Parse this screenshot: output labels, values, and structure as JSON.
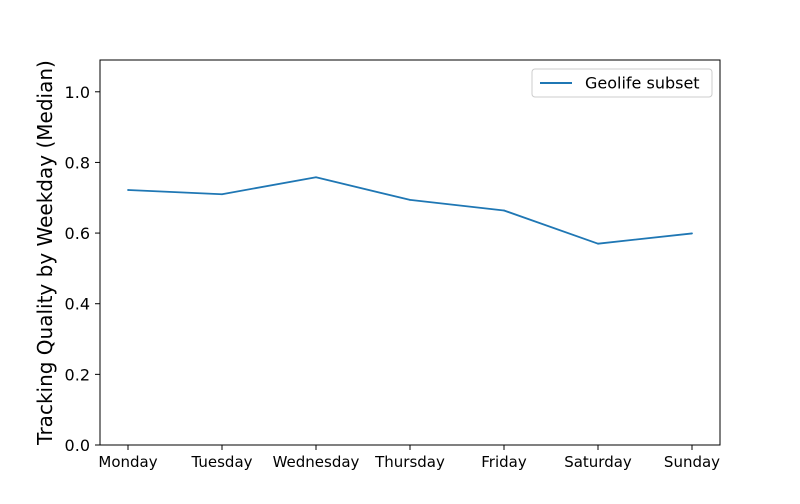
{
  "chart_data": {
    "type": "line",
    "categories": [
      "Monday",
      "Tuesday",
      "Wednesday",
      "Thursday",
      "Friday",
      "Saturday",
      "Sunday"
    ],
    "series": [
      {
        "name": "Geolife subset",
        "values": [
          0.722,
          0.71,
          0.758,
          0.694,
          0.664,
          0.57,
          0.599
        ],
        "color": "#1f77b4"
      }
    ],
    "title": "",
    "xlabel": "",
    "ylabel": "Tracking Quality by Weekday (Median)",
    "ylim": [
      0.0,
      1.09
    ],
    "yticks": [
      0.0,
      0.2,
      0.4,
      0.6,
      0.8,
      1.0
    ],
    "ytick_labels": [
      "0.0",
      "0.2",
      "0.4",
      "0.6",
      "0.8",
      "1.0"
    ],
    "grid": false,
    "legend_position": "top-right"
  }
}
